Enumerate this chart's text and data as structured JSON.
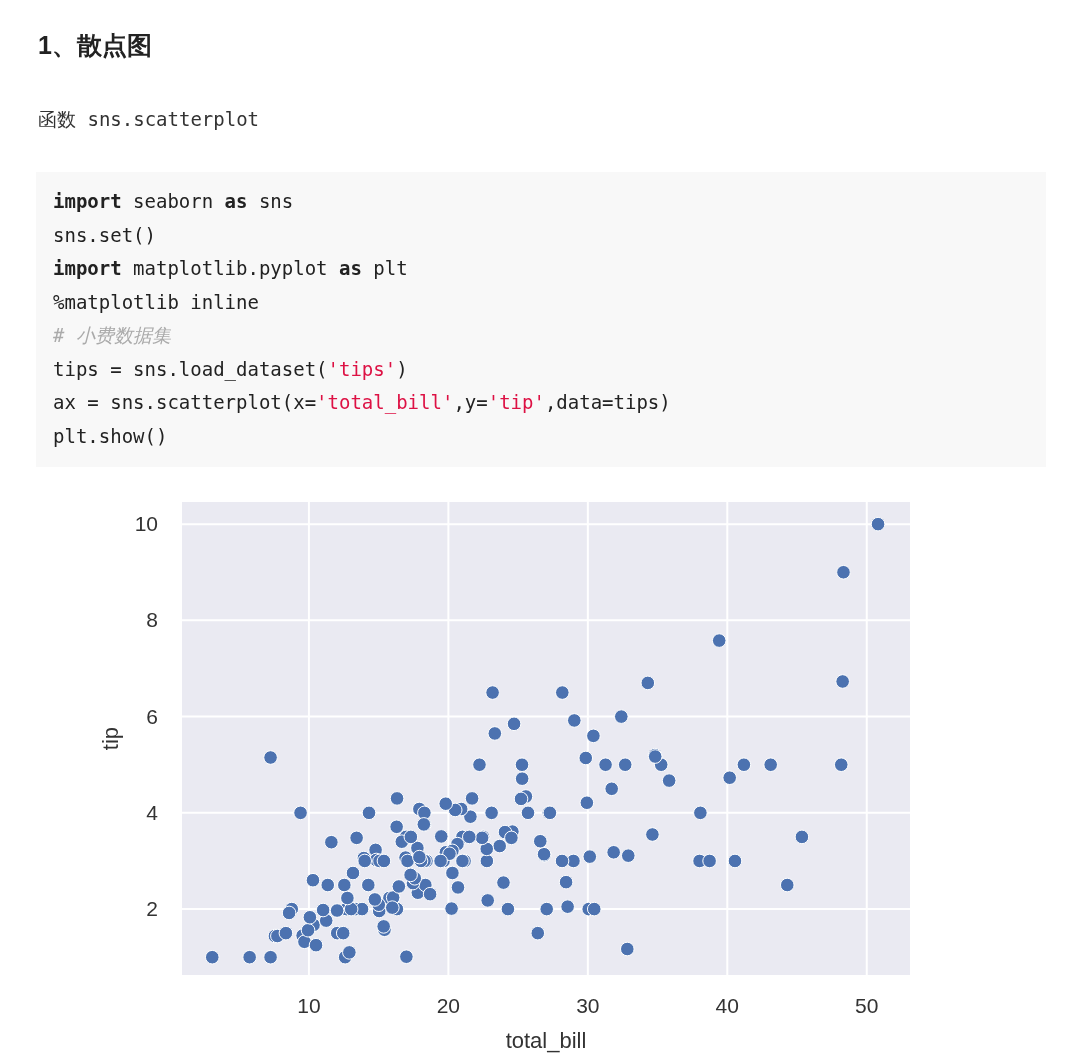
{
  "chart_data": {
    "type": "scatter",
    "title": "1、散点图",
    "subtitle": "函数 sns.scatterplot",
    "annotations": [
      "import seaborn as sns",
      "sns.set()",
      "import matplotlib.pyplot as plt",
      "%matplotlib inline",
      "# 小费数据集",
      "tips = sns.load_dataset('tips')",
      "ax = sns.scatterplot(x='total_bill',y='tip',data=tips)",
      "plt.show()"
    ],
    "xlabel": "total_bill",
    "ylabel": "tip",
    "x": [
      16.99,
      21.01,
      23.68,
      24.59,
      25.29,
      8.77,
      26.88,
      15.04,
      14.78,
      35.26,
      15.42,
      18.43,
      14.83,
      21.58,
      10.33,
      16.29,
      16.97,
      20.65,
      17.92,
      20.29,
      15.77,
      39.42,
      19.82,
      17.81,
      13.37,
      12.69,
      21.7,
      19.65,
      9.55,
      18.35,
      15.06,
      20.69,
      17.78,
      24.06,
      16.31,
      16.93,
      18.69,
      31.27,
      16.04,
      17.46,
      13.94,
      9.68,
      30.4,
      18.29,
      22.23,
      32.4,
      28.55,
      18.04,
      12.54,
      10.29,
      34.81,
      9.94,
      25.56,
      19.49,
      38.01,
      26.41,
      11.24,
      48.27,
      20.29,
      13.81,
      11.02,
      18.29,
      17.59,
      20.08,
      16.45,
      3.07,
      20.23,
      15.01,
      12.02,
      17.07,
      26.86,
      25.28,
      14.73,
      10.51,
      17.92,
      27.2,
      22.76,
      17.29,
      19.44,
      16.66,
      10.07,
      32.68,
      15.98,
      34.83,
      13.03,
      18.28,
      24.71,
      21.16,
      28.97,
      22.49,
      5.75,
      16.32,
      22.75,
      40.17,
      27.28,
      12.03,
      21.01,
      12.46,
      11.35,
      15.38,
      44.3,
      22.42,
      20.92,
      15.36,
      20.49,
      25.21,
      18.24,
      14.31,
      14.0,
      7.25,
      38.07,
      23.95,
      25.71,
      17.31,
      29.93,
      7.25,
      48.33,
      50.81,
      32.83,
      43.11,
      45.35,
      48.17,
      41.19,
      40.55,
      38.73,
      23.33,
      23.17,
      28.17,
      29.03,
      34.3,
      9.4,
      30.06,
      30.46,
      7.56,
      7.74,
      8.58,
      35.83,
      29.85,
      30.14,
      31.85,
      32.9,
      34.63,
      12.6,
      28.15,
      24.27,
      27.05,
      13.42,
      11.61,
      8.35,
      12.76,
      13.16,
      14.26,
      22.82,
      24.52,
      26.59,
      31.71,
      19.81,
      28.44,
      21.5,
      12.9,
      23.1
    ],
    "values": [
      1.01,
      3.5,
      3.31,
      3.61,
      4.71,
      2.0,
      3.12,
      1.96,
      3.23,
      5.0,
      1.57,
      3.0,
      3.02,
      3.92,
      1.67,
      3.71,
      3.5,
      3.35,
      4.08,
      2.75,
      2.23,
      7.58,
      3.18,
      2.34,
      2.0,
      2.0,
      4.3,
      3.0,
      1.45,
      2.5,
      3.0,
      2.45,
      3.27,
      3.6,
      2.0,
      3.07,
      2.31,
      5.0,
      2.24,
      2.54,
      3.06,
      1.32,
      5.6,
      3.0,
      5.0,
      6.0,
      2.05,
      3.0,
      2.5,
      2.6,
      5.2,
      1.56,
      4.34,
      3.51,
      3.0,
      1.5,
      1.76,
      6.73,
      3.21,
      2.0,
      1.98,
      3.76,
      2.64,
      3.15,
      2.47,
      1.0,
      2.01,
      2.09,
      1.97,
      3.0,
      3.14,
      5.0,
      2.2,
      1.25,
      3.08,
      4.0,
      3.0,
      2.71,
      3.0,
      3.4,
      1.83,
      5.0,
      2.03,
      5.17,
      2.0,
      4.0,
      5.85,
      3.0,
      3.0,
      3.5,
      1.0,
      4.3,
      3.25,
      4.73,
      4.0,
      1.5,
      3.0,
      1.5,
      2.5,
      3.0,
      2.5,
      3.48,
      4.08,
      1.64,
      4.06,
      4.29,
      3.76,
      4.0,
      3.0,
      1.0,
      4.0,
      2.55,
      4.0,
      3.5,
      4.21,
      5.15,
      9.0,
      10.0,
      1.17,
      5.0,
      3.5,
      5.0,
      5.0,
      3.0,
      3.0,
      5.65,
      6.5,
      6.5,
      5.92,
      6.7,
      4.0,
      2.0,
      2.0,
      1.44,
      1.44,
      1.92,
      4.67,
      5.14,
      3.09,
      3.18,
      3.11,
      3.55,
      1.0,
      3.0,
      2.0,
      2.0,
      3.48,
      3.39,
      1.5,
      2.23,
      2.75,
      2.5,
      2.18,
      3.48,
      3.41,
      4.5,
      4.19,
      2.56,
      3.5,
      1.1,
      4.0
    ],
    "color": "#4c72b0",
    "marker": "circle",
    "grid": true,
    "xlim": [
      0.9,
      53.1
    ],
    "ylim": [
      0.63,
      10.46
    ],
    "xticks": [
      10,
      20,
      30,
      40,
      50
    ],
    "yticks": [
      2,
      4,
      6,
      8,
      10
    ]
  }
}
